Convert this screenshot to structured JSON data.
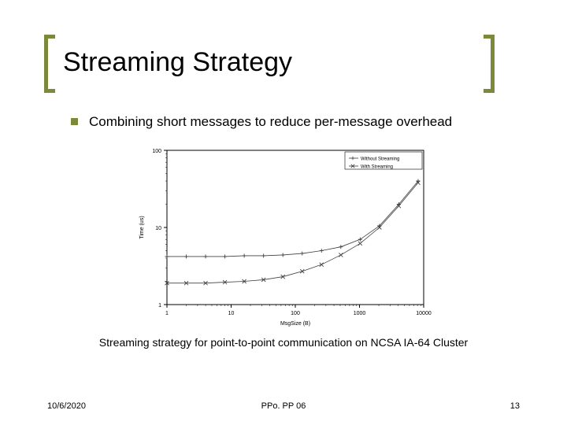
{
  "title": "Streaming Strategy",
  "bullet": "Combining short messages to reduce per-message overhead",
  "caption": "Streaming strategy for point-to-point communication on NCSA IA-64 Cluster",
  "footer": {
    "date": "10/6/2020",
    "center": "PPo. PP 06",
    "page": "13"
  },
  "colors": {
    "accent": "#7a8a3a",
    "text": "#000000",
    "background": "#ffffff",
    "chart_line": "#404040",
    "chart_axis": "#000000"
  },
  "chart": {
    "type": "line",
    "xlabel": "MsgSize (B)",
    "ylabel": "Time (us)",
    "x_scale": "log",
    "y_scale": "log",
    "xlim": [
      1,
      10000
    ],
    "ylim": [
      1,
      100
    ],
    "xticks": [
      1,
      10,
      100,
      1000,
      10000
    ],
    "yticks": [
      1,
      10,
      100
    ],
    "legend": {
      "position": "top-right",
      "items": [
        {
          "label": "Without Streaming",
          "marker": "plus"
        },
        {
          "label": "With Streaming",
          "marker": "cross"
        }
      ]
    },
    "label_fontsize": 7,
    "tick_fontsize": 7,
    "legend_fontsize": 6,
    "series": [
      {
        "name": "Without Streaming",
        "marker": "plus",
        "color": "#404040",
        "x": [
          1,
          2,
          4,
          8,
          16,
          32,
          64,
          128,
          256,
          512,
          1024,
          2048,
          4096,
          8192
        ],
        "y": [
          4.2,
          4.2,
          4.2,
          4.2,
          4.3,
          4.3,
          4.4,
          4.6,
          5.0,
          5.6,
          7.0,
          10.5,
          20,
          40
        ]
      },
      {
        "name": "With Streaming",
        "marker": "cross",
        "color": "#404040",
        "x": [
          1,
          2,
          4,
          8,
          16,
          32,
          64,
          128,
          256,
          512,
          1024,
          2048,
          4096,
          8192
        ],
        "y": [
          1.9,
          1.9,
          1.9,
          1.95,
          2.0,
          2.1,
          2.3,
          2.7,
          3.3,
          4.4,
          6.2,
          10,
          19,
          38
        ]
      }
    ]
  }
}
